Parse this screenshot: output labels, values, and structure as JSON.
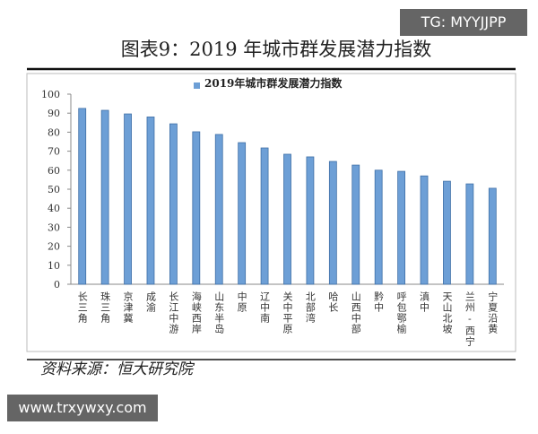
{
  "chart_data": {
    "type": "bar",
    "title": "图表9：2019 年城市群发展潜力指数",
    "legend": "2019年城市群发展潜力指数",
    "source": "资料来源：恒大研究院",
    "watermarks": [
      "TG: MYYJJPP",
      "www.trxywxy.com"
    ],
    "categories": [
      "长三角",
      "珠三角",
      "京津冀",
      "成渝",
      "长江中游",
      "海峡西岸",
      "山东半岛",
      "中原",
      "辽中南",
      "关中平原",
      "北部湾",
      "哈长",
      "山西中部",
      "黔中",
      "呼包鄂榆",
      "滇中",
      "天山北坡",
      "兰州-西宁",
      "宁夏沿黄"
    ],
    "values": [
      92.5,
      91.5,
      89.6,
      88,
      84.4,
      80.2,
      78.8,
      74.5,
      71.7,
      68.4,
      67,
      64.6,
      62.7,
      60,
      59.4,
      57,
      54.2,
      52.8,
      50.5
    ],
    "color": "#6d9fd6",
    "ylim": [
      0,
      100
    ],
    "yticks": [
      0,
      10,
      20,
      30,
      40,
      50,
      60,
      70,
      80,
      90,
      100
    ]
  }
}
